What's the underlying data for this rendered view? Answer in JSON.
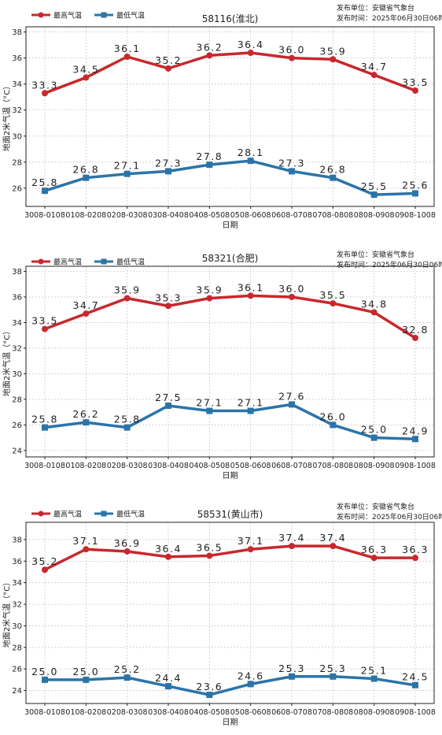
{
  "publisher_label": "发布单位：安徽省气象台",
  "publish_time_label": "发布时间：2025年06月30日06时",
  "colors": {
    "max": "#c8282d",
    "min": "#2b74a8",
    "grid": "#bbbbbb"
  },
  "chart_data": [
    {
      "type": "line",
      "title": "58116(淮北)",
      "xlabel": "日期",
      "ylabel": "地面2米气温（°C）",
      "categories": [
        "3008-0108",
        "0108-0208",
        "0208-0308",
        "0308-0408",
        "0408-0508",
        "0508-0608",
        "0608-0708",
        "0708-0808",
        "0808-0908",
        "0908-1008"
      ],
      "yticks": [
        26,
        28,
        30,
        32,
        34,
        36,
        38
      ],
      "ylim": [
        24.6,
        38.4
      ],
      "grid": true,
      "legend_position": "top-left",
      "series": [
        {
          "name": "最高气温",
          "key": "max",
          "values": [
            33.3,
            34.5,
            36.1,
            35.2,
            36.2,
            36.4,
            36.0,
            35.9,
            34.7,
            33.5
          ]
        },
        {
          "name": "最低气温",
          "key": "min",
          "values": [
            25.8,
            26.8,
            27.1,
            27.3,
            27.8,
            28.1,
            27.3,
            26.8,
            25.5,
            25.6
          ]
        }
      ]
    },
    {
      "type": "line",
      "title": "58321(合肥)",
      "xlabel": "日期",
      "ylabel": "地面2米气温（°C）",
      "categories": [
        "3008-0108",
        "0108-0208",
        "0208-0308",
        "0308-0408",
        "0408-0508",
        "0508-0608",
        "0608-0708",
        "0708-0808",
        "0808-0908",
        "0908-1008"
      ],
      "yticks": [
        24,
        26,
        28,
        30,
        32,
        34,
        36,
        38
      ],
      "ylim": [
        23.5,
        38.4
      ],
      "grid": true,
      "legend_position": "top-left",
      "series": [
        {
          "name": "最高气温",
          "key": "max",
          "values": [
            33.5,
            34.7,
            35.9,
            35.3,
            35.9,
            36.1,
            36.0,
            35.5,
            34.8,
            32.8
          ]
        },
        {
          "name": "最低气温",
          "key": "min",
          "values": [
            25.8,
            26.2,
            25.8,
            27.5,
            27.1,
            27.1,
            27.6,
            26.0,
            25.0,
            24.9
          ]
        }
      ]
    },
    {
      "type": "line",
      "title": "58531(黄山市)",
      "xlabel": "日期",
      "ylabel": "地面2米气温（°C）",
      "categories": [
        "3008-0108",
        "0108-0208",
        "0208-0308",
        "0308-0408",
        "0408-0508",
        "0508-0608",
        "0608-0708",
        "0708-0808",
        "0808-0908",
        "0908-1008"
      ],
      "yticks": [
        24,
        26,
        28,
        30,
        32,
        34,
        36,
        38
      ],
      "ylim": [
        22.8,
        39.6
      ],
      "grid": true,
      "legend_position": "top-left",
      "series": [
        {
          "name": "最高气温",
          "key": "max",
          "values": [
            35.2,
            37.1,
            36.9,
            36.4,
            36.5,
            37.1,
            37.4,
            37.4,
            36.3,
            36.3
          ]
        },
        {
          "name": "最低气温",
          "key": "min",
          "values": [
            25.0,
            25.0,
            25.2,
            24.4,
            23.6,
            24.6,
            25.3,
            25.3,
            25.1,
            24.5
          ]
        }
      ]
    }
  ]
}
